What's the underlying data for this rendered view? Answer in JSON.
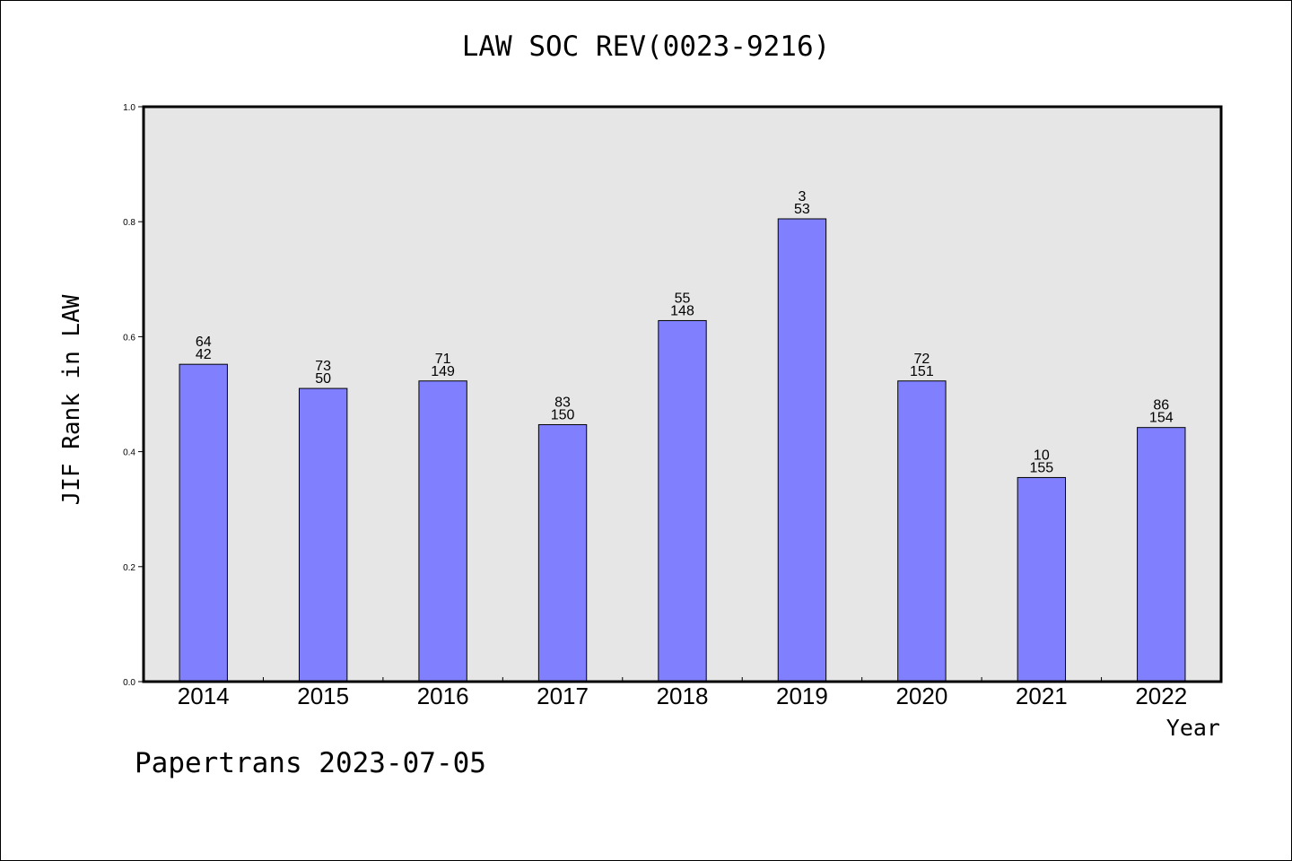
{
  "chart_data": {
    "type": "bar",
    "title": "LAW SOC REV(0023-9216)",
    "xlabel": "Year",
    "ylabel": "JIF Rank in LAW",
    "categories": [
      "2014",
      "2015",
      "2016",
      "2017",
      "2018",
      "2019",
      "2020",
      "2021",
      "2022"
    ],
    "values": [
      0.552,
      0.51,
      0.523,
      0.447,
      0.628,
      0.805,
      0.523,
      0.355,
      0.442
    ],
    "rank_labels": [
      "64",
      "73",
      "71",
      "83",
      "55",
      "3",
      "72",
      "10",
      "86"
    ],
    "total_labels": [
      "42",
      "50",
      "149",
      "150",
      "148",
      "53",
      "151",
      "155",
      "154"
    ],
    "ylim": [
      0,
      1.0
    ],
    "yticks": [
      "0.0",
      "0.2",
      "0.4",
      "0.6",
      "0.8",
      "1.0"
    ],
    "ytick_values": [
      0,
      0.2,
      0.4,
      0.6,
      0.8,
      1.0
    ],
    "grid": false,
    "bar_color": "#8080ff",
    "plot_background": "#e6e6e6"
  },
  "footer": "Papertrans 2023-07-05"
}
